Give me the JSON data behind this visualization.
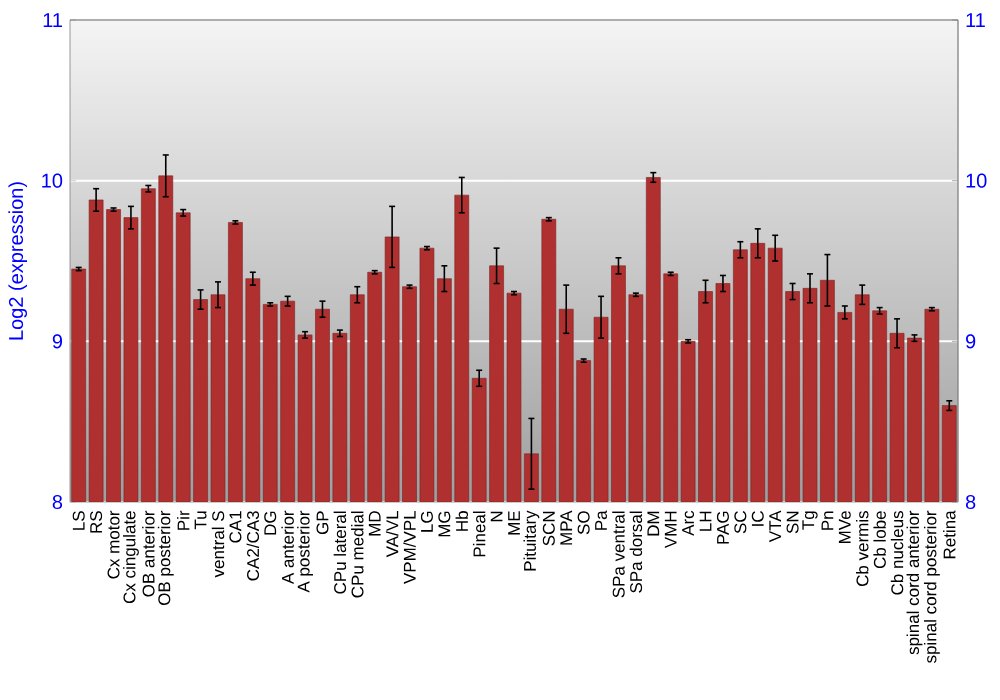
{
  "chart_data": {
    "type": "bar",
    "ylabel": "Log2 (expression)",
    "categories": [
      "LS",
      "RS",
      "Cx motor",
      "Cx cingulate",
      "OB anterior",
      "OB posterior",
      "Pir",
      "Tu",
      "ventral S",
      "CA1",
      "CA2/CA3",
      "DG",
      "A anterior",
      "A posterior",
      "GP",
      "CPu lateral",
      "CPu medial",
      "MD",
      "VA/VL",
      "VPM/VPL",
      "LG",
      "MG",
      "Hb",
      "Pineal",
      "N",
      "ME",
      "Pituitary",
      "SCN",
      "MPA",
      "SO",
      "Pa",
      "SPa ventral",
      "SPa dorsal",
      "DM",
      "VMH",
      "Arc",
      "LH",
      "PAG",
      "SC",
      "IC",
      "VTA",
      "SN",
      "Tg",
      "Pn",
      "MVe",
      "Cb vermis",
      "Cb lobe",
      "Cb nucleus",
      "spinal cord anterior",
      "spinal cord posterior",
      "Retina"
    ],
    "values": [
      9.45,
      9.88,
      9.82,
      9.77,
      9.95,
      10.03,
      9.8,
      9.26,
      9.29,
      9.74,
      9.39,
      9.23,
      9.25,
      9.04,
      9.2,
      9.05,
      9.29,
      9.43,
      9.65,
      9.34,
      9.58,
      9.39,
      9.91,
      8.77,
      9.47,
      9.3,
      8.3,
      9.76,
      9.2,
      8.88,
      9.15,
      9.47,
      9.29,
      10.02,
      9.42,
      9.0,
      9.31,
      9.36,
      9.57,
      9.61,
      9.58,
      9.31,
      9.33,
      9.38,
      9.18,
      9.29,
      9.19,
      9.05,
      9.02,
      9.2,
      8.6
    ],
    "errors": [
      0.01,
      0.07,
      0.01,
      0.07,
      0.02,
      0.13,
      0.02,
      0.06,
      0.08,
      0.01,
      0.04,
      0.01,
      0.03,
      0.02,
      0.05,
      0.02,
      0.05,
      0.01,
      0.19,
      0.01,
      0.01,
      0.08,
      0.11,
      0.05,
      0.11,
      0.01,
      0.22,
      0.01,
      0.15,
      0.01,
      0.13,
      0.05,
      0.01,
      0.03,
      0.01,
      0.01,
      0.07,
      0.05,
      0.05,
      0.09,
      0.08,
      0.05,
      0.09,
      0.16,
      0.04,
      0.06,
      0.02,
      0.09,
      0.02,
      0.01,
      0.03
    ],
    "color": "#b03030",
    "ylim": [
      8,
      11
    ],
    "yticks": [
      8,
      9,
      10,
      11
    ],
    "y2lim": [
      8,
      11
    ],
    "y2ticks": [
      8,
      9,
      10,
      11
    ],
    "grid": "y"
  }
}
